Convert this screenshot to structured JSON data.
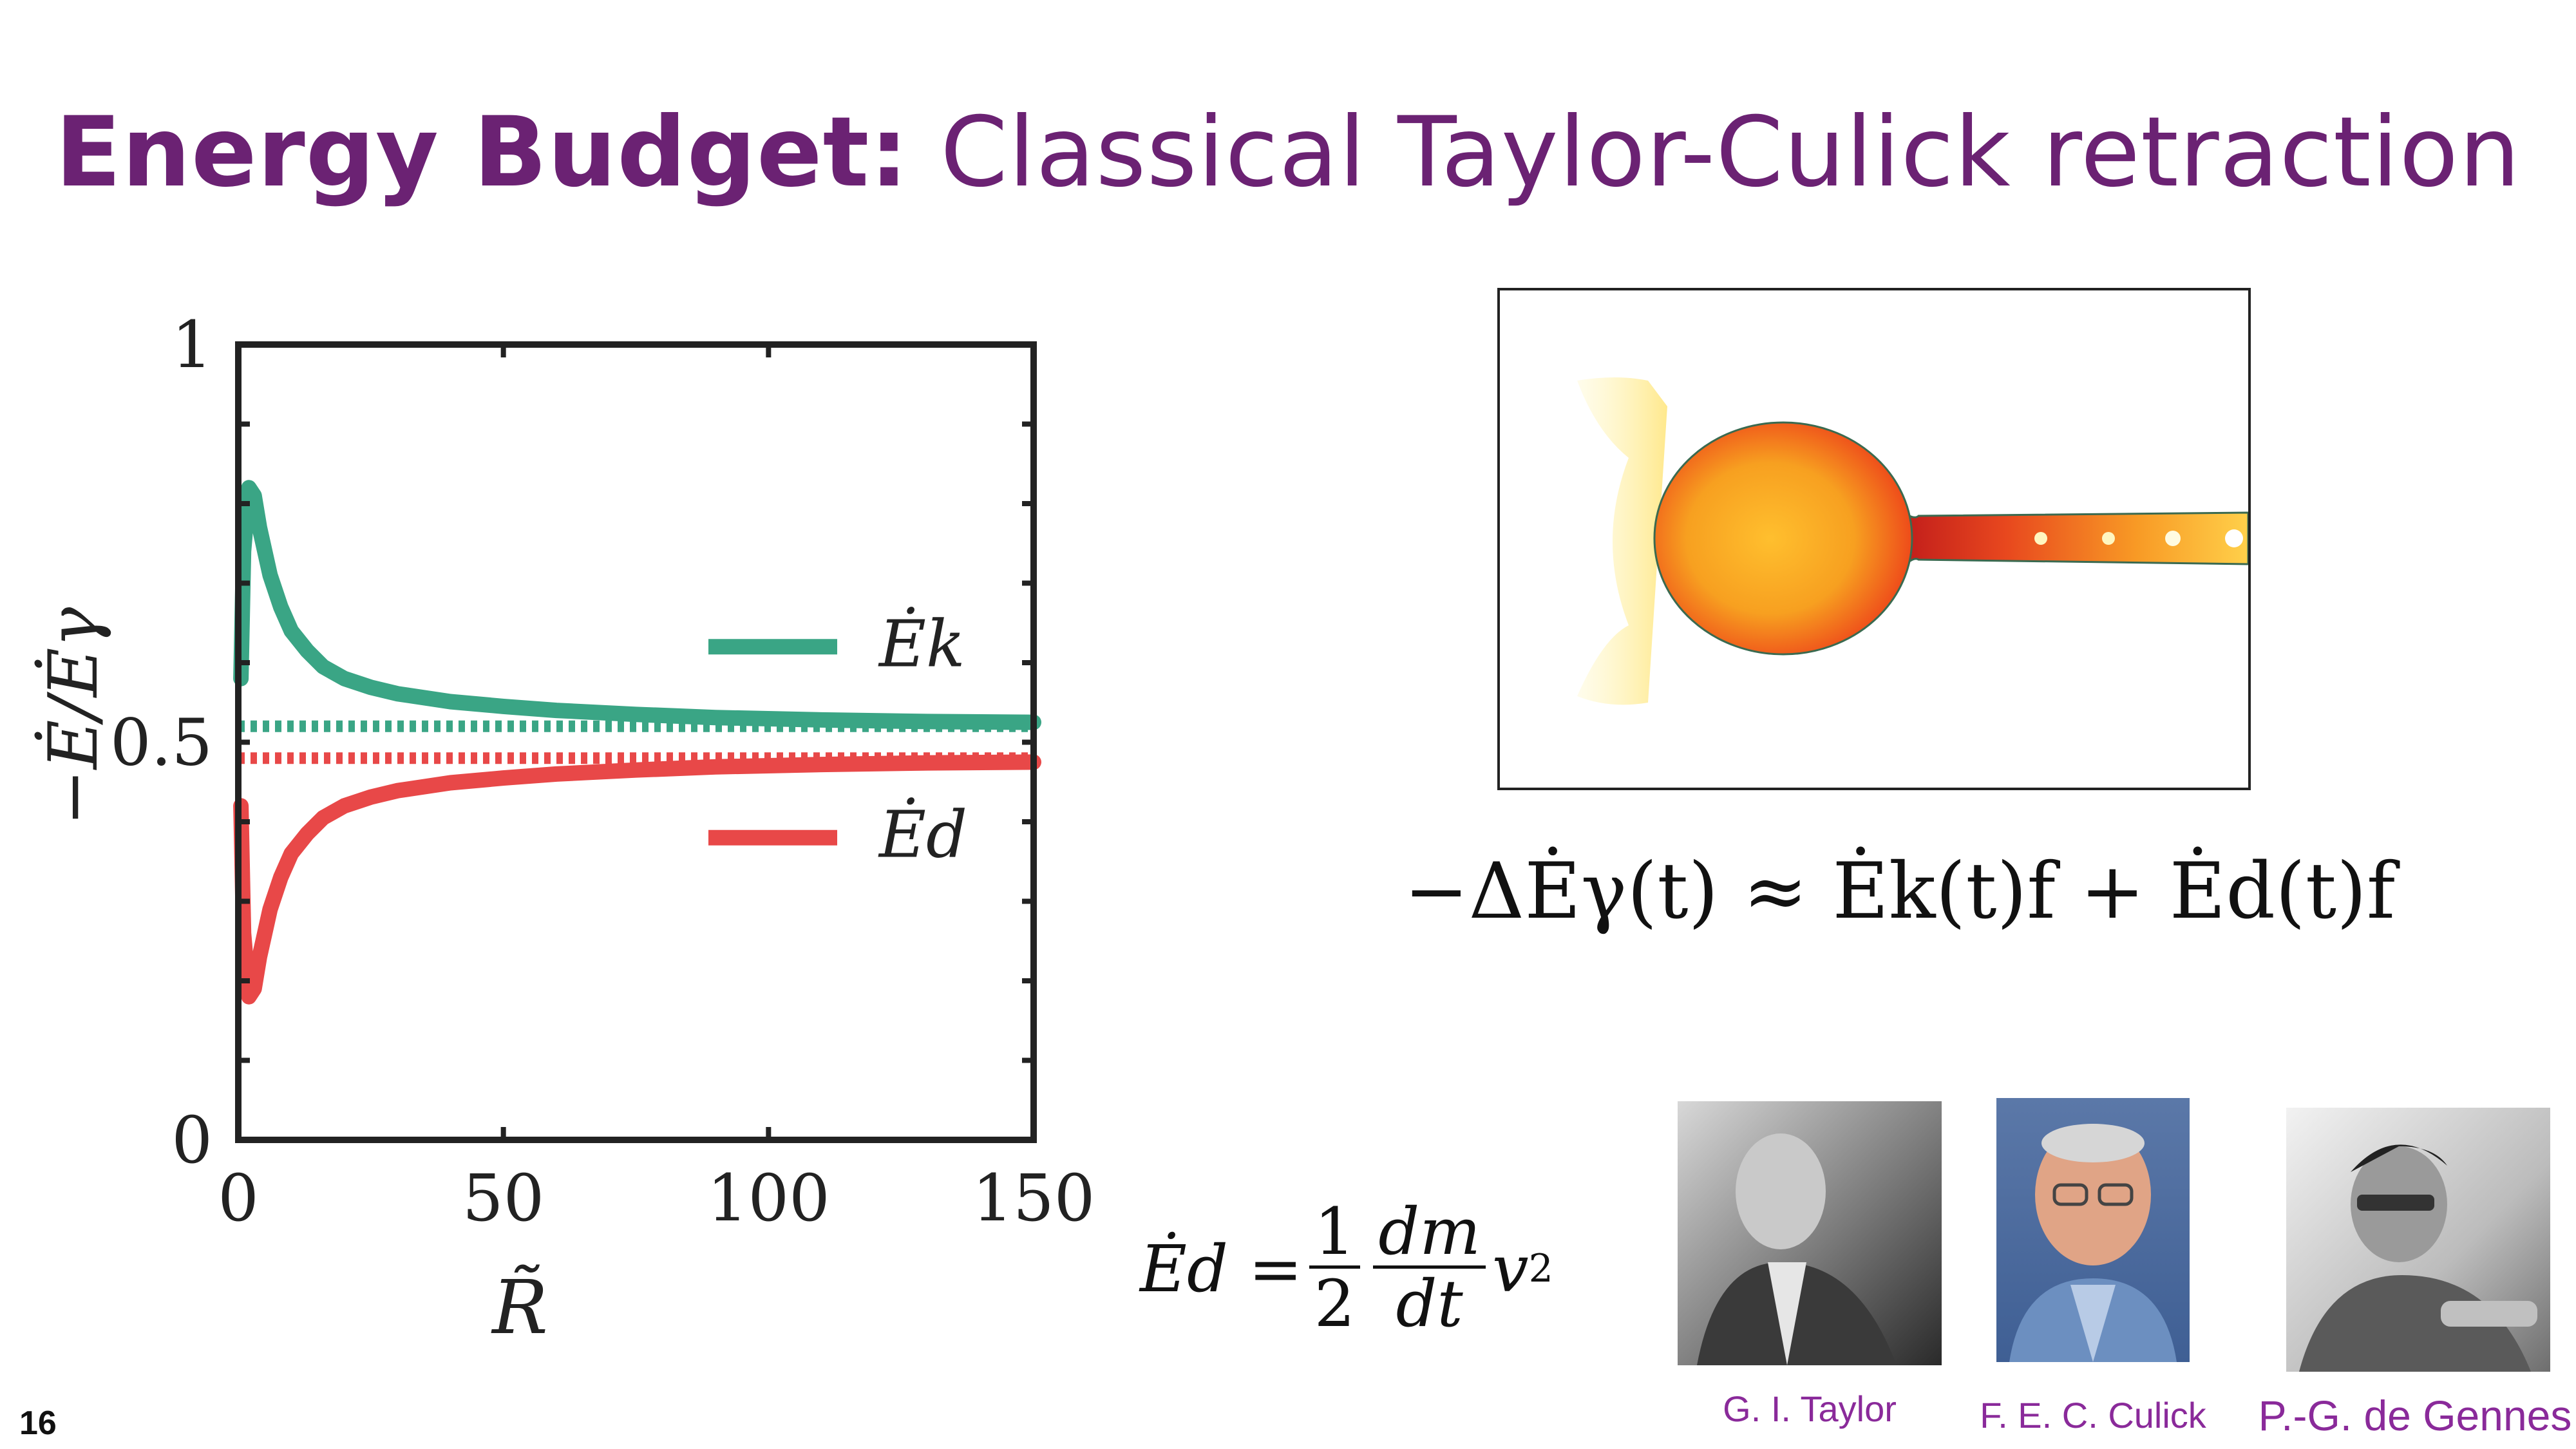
{
  "slide": {
    "title_bold": "Energy Budget:",
    "title_rest": " Classical Taylor-Culick retraction",
    "page_number": "16"
  },
  "equations": {
    "energy_balance": "−ΔĖγ(t) ≈ Ėk(t)f + Ėd(t)f",
    "drag": {
      "lhs": "Ėd =",
      "frac1_num": "1",
      "frac1_den": "2",
      "frac2_num": "dm",
      "frac2_den": "dt",
      "tail": "v",
      "tail_sup": "2"
    }
  },
  "portraits": [
    {
      "caption": "G. I. Taylor"
    },
    {
      "caption": "F. E. C. Culick"
    },
    {
      "caption": "P.-G. de Gennes"
    }
  ],
  "chart_data": {
    "type": "line",
    "xlabel": "R̃",
    "ylabel": "−Ė/Ėγ",
    "xlim": [
      0,
      150
    ],
    "ylim": [
      0,
      1
    ],
    "xticks": [
      "0",
      "50",
      "100",
      "150"
    ],
    "yticks": [
      "0",
      "0.5",
      "1"
    ],
    "legend_position": "right",
    "series": [
      {
        "name": "Ėk",
        "color": "#3aa585",
        "style": "solid",
        "x": [
          0.5,
          1,
          2,
          3,
          4,
          6,
          8,
          10,
          13,
          16,
          20,
          25,
          30,
          40,
          50,
          60,
          75,
          90,
          110,
          130,
          150
        ],
        "y": [
          0.58,
          0.74,
          0.82,
          0.81,
          0.77,
          0.71,
          0.67,
          0.64,
          0.615,
          0.595,
          0.58,
          0.569,
          0.561,
          0.551,
          0.545,
          0.54,
          0.535,
          0.531,
          0.528,
          0.526,
          0.525
        ]
      },
      {
        "name": "Ėd",
        "color": "#e84848",
        "style": "solid",
        "x": [
          0.5,
          1,
          2,
          3,
          4,
          6,
          8,
          10,
          13,
          16,
          20,
          25,
          30,
          40,
          50,
          60,
          75,
          90,
          110,
          130,
          150
        ],
        "y": [
          0.42,
          0.26,
          0.18,
          0.19,
          0.23,
          0.29,
          0.33,
          0.36,
          0.385,
          0.405,
          0.42,
          0.431,
          0.439,
          0.449,
          0.455,
          0.46,
          0.465,
          0.469,
          0.472,
          0.474,
          0.475
        ]
      },
      {
        "color": "#3aa585",
        "style": "dotted",
        "x": [
          0,
          150
        ],
        "y": [
          0.52,
          0.52
        ]
      },
      {
        "color": "#e84848",
        "style": "dotted",
        "x": [
          0,
          150
        ],
        "y": [
          0.48,
          0.48
        ]
      }
    ]
  }
}
